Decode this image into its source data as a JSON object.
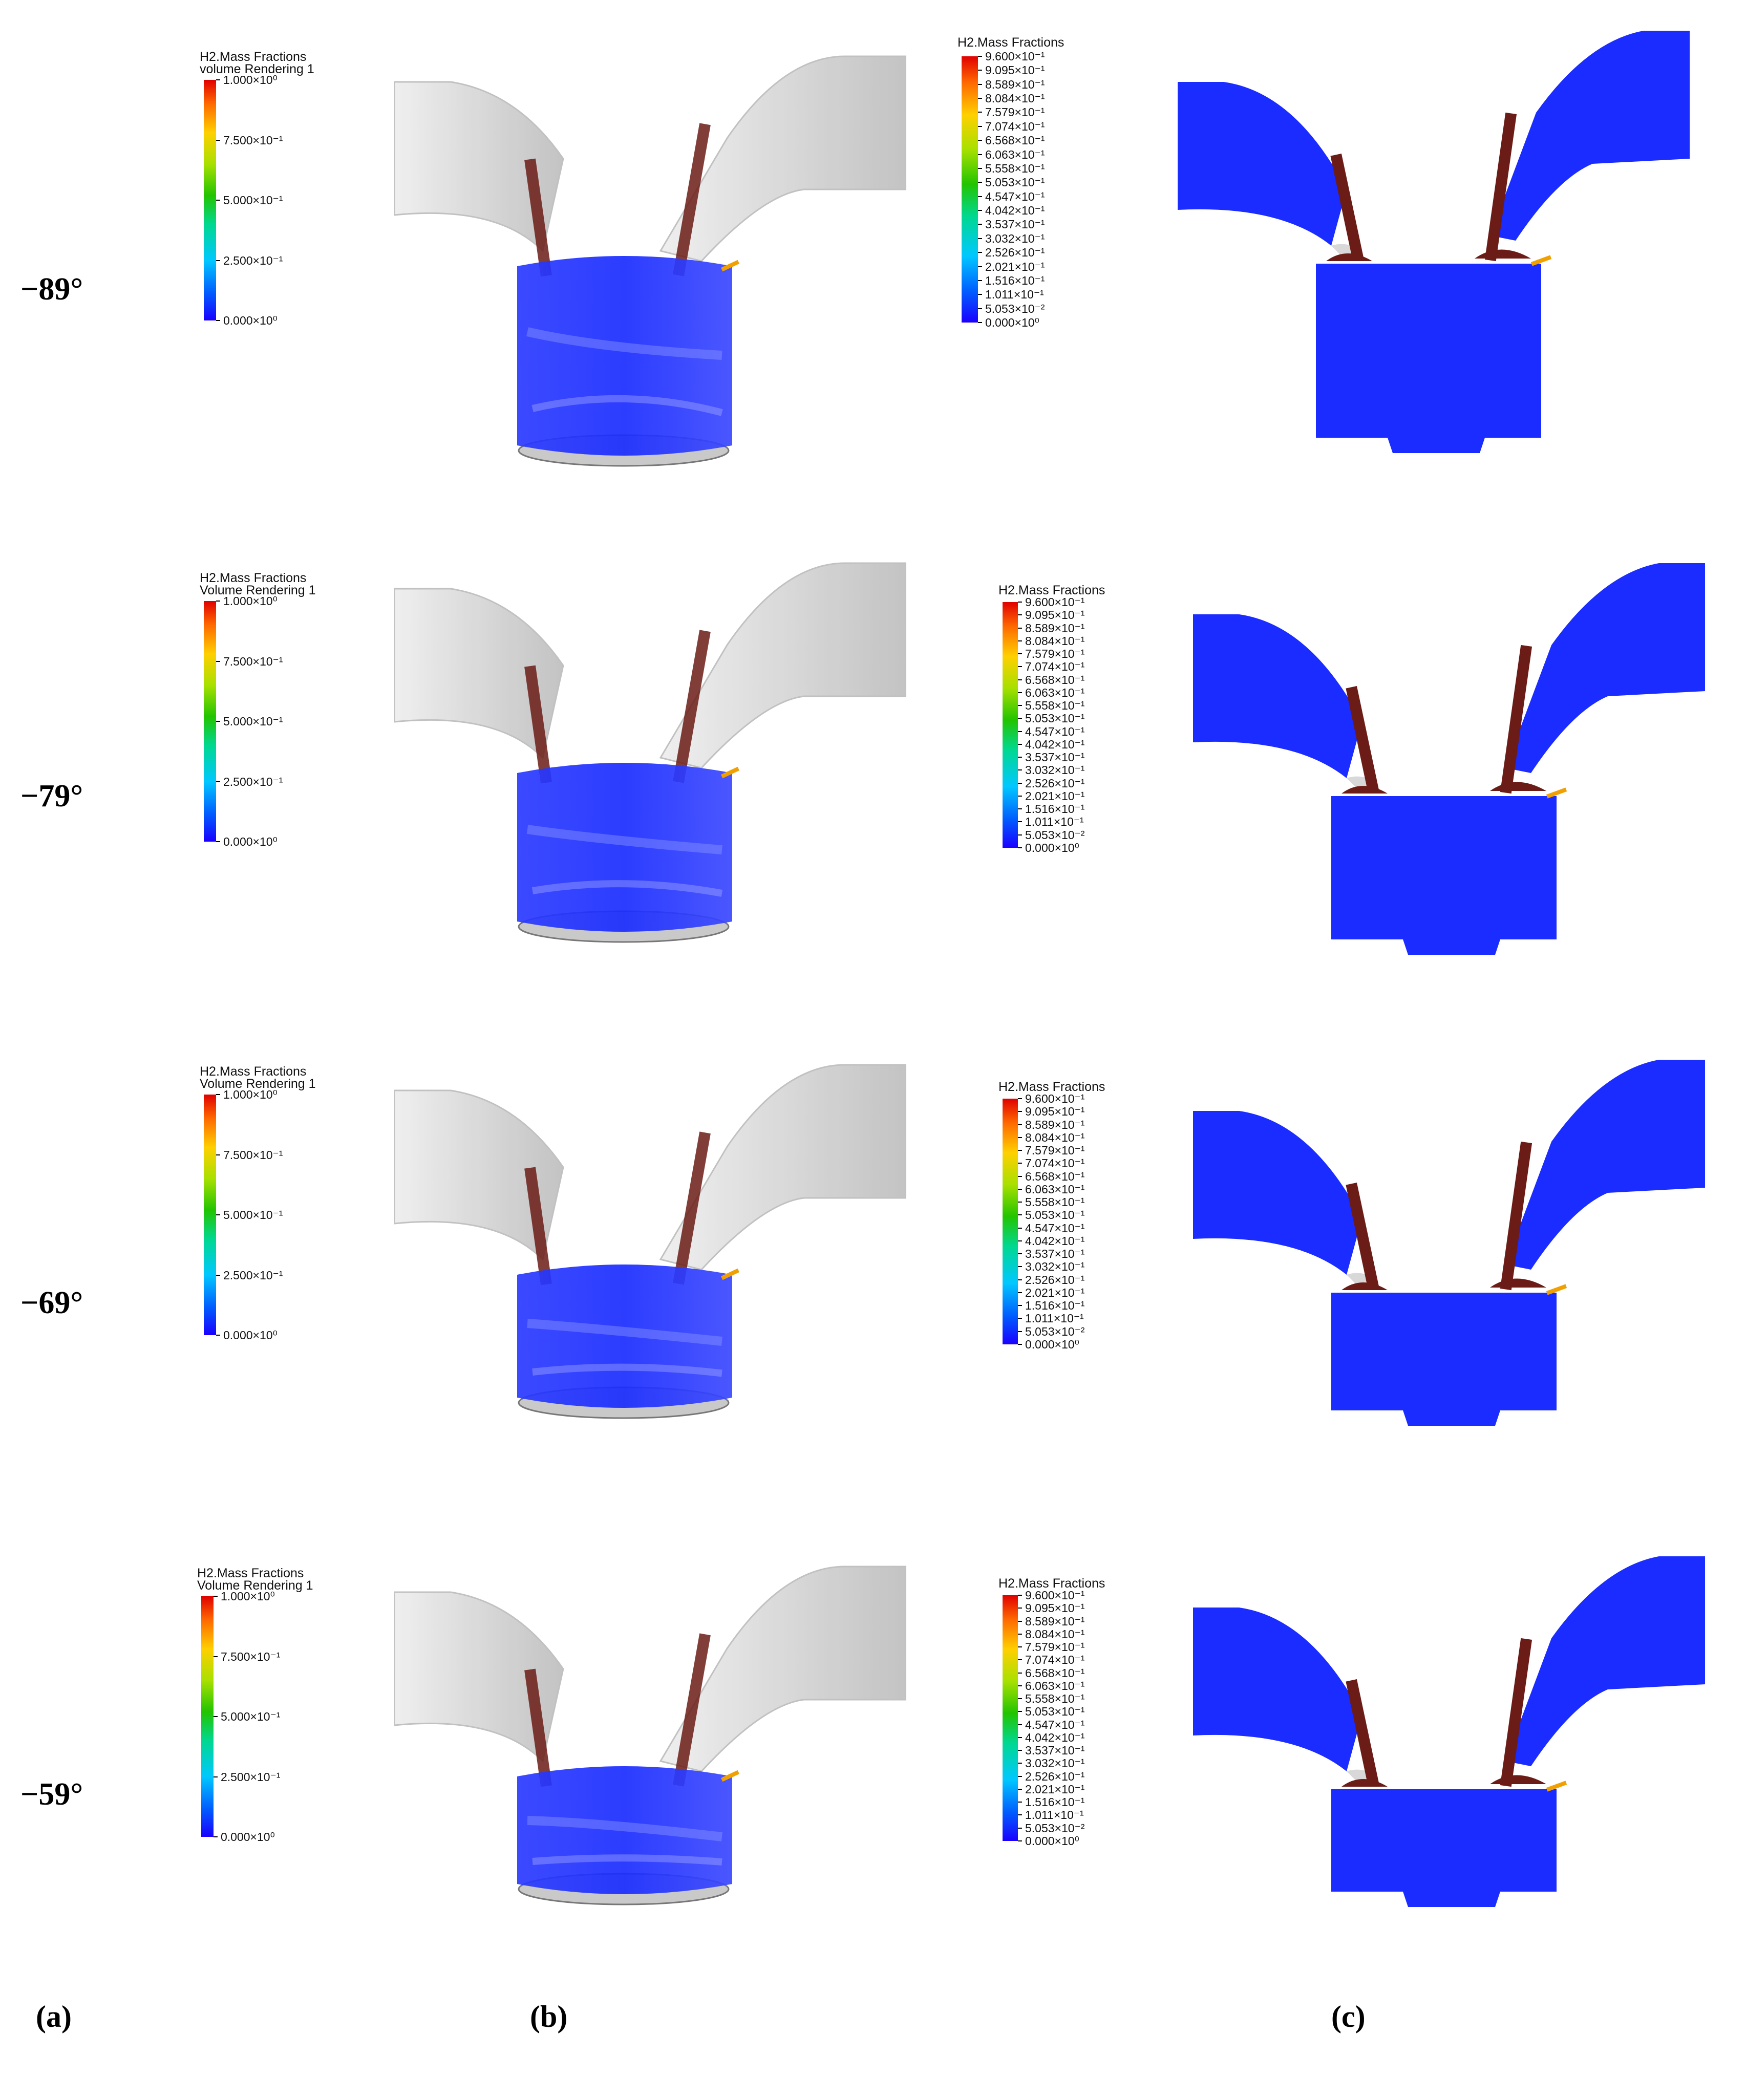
{
  "colors": {
    "blue_fluid": "#1a2cff",
    "valve_stem": "#6b1c16",
    "port_grey": "#d8d8d8",
    "colormap_low": "#1a00ff",
    "colormap_high": "#e00000"
  },
  "volume_legend": {
    "title": "H2.Mass Fractions",
    "subtitle": "Volume Rendering 1",
    "ticks": [
      "1.000×10⁰",
      "7.500×10⁻¹",
      "5.000×10⁻¹",
      "2.500×10⁻¹",
      "0.000×10⁰"
    ]
  },
  "surface_legend": {
    "title": "H2.Mass Fractions",
    "ticks": [
      "9.600×10⁻¹",
      "9.095×10⁻¹",
      "8.589×10⁻¹",
      "8.084×10⁻¹",
      "7.579×10⁻¹",
      "7.074×10⁻¹",
      "6.568×10⁻¹",
      "6.063×10⁻¹",
      "5.558×10⁻¹",
      "5.053×10⁻¹",
      "4.547×10⁻¹",
      "4.042×10⁻¹",
      "3.537×10⁻¹",
      "3.032×10⁻¹",
      "2.526×10⁻¹",
      "2.021×10⁻¹",
      "1.516×10⁻¹",
      "1.011×10⁻¹",
      "5.053×10⁻²",
      "0.000×10⁰"
    ]
  },
  "rows": [
    {
      "angle": "−89°",
      "volume_subtitle": "volume Rendering 1"
    },
    {
      "angle": "−79°",
      "volume_subtitle": "Volume Rendering 1"
    },
    {
      "angle": "−69°",
      "volume_subtitle": "Volume Rendering 1"
    },
    {
      "angle": "−59°",
      "volume_subtitle": "Volume Rendering 1"
    }
  ],
  "captions": {
    "a": "(a)",
    "b": "(b)",
    "c": "(c)"
  }
}
